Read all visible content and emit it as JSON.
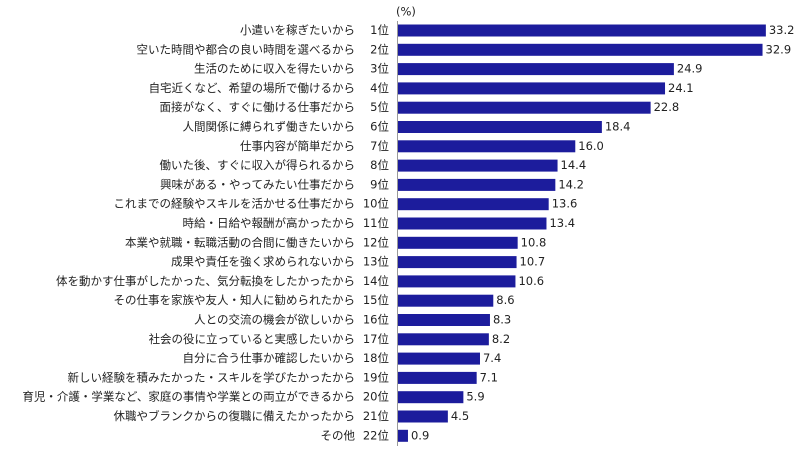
{
  "chart_data": {
    "type": "bar",
    "orientation": "horizontal",
    "unit_label": "(%)",
    "color": "#1c1c9c",
    "categories": [
      "小遣いを稼ぎたいから",
      "空いた時間や都合の良い時間を選べるから",
      "生活のために収入を得たいから",
      "自宅近くなど、希望の場所で働けるから",
      "面接がなく、すぐに働ける仕事だから",
      "人間関係に縛られず働きたいから",
      "仕事内容が簡単だから",
      "働いた後、すぐに収入が得られるから",
      "興味がある・やってみたい仕事だから",
      "これまでの経験やスキルを活かせる仕事だから",
      "時給・日給や報酬が高かったから",
      "本業や就職・転職活動の合間に働きたいから",
      "成果や責任を強く求められないから",
      "体を動かす仕事がしたかった、気分転換をしたかったから",
      "その仕事を家族や友人・知人に勧められたから",
      "人との交流の機会が欲しいから",
      "社会の役に立っていると実感したいから",
      "自分に合う仕事か確認したいから",
      "新しい経験を積みたかった・スキルを学びたかったから",
      "育児・介護・学業など、家庭の事情や学業との両立ができるから",
      "休職やブランクからの復職に備えたかったから",
      "その他"
    ],
    "ranks": [
      "1位",
      "2位",
      "3位",
      "4位",
      "5位",
      "6位",
      "7位",
      "8位",
      "9位",
      "10位",
      "11位",
      "12位",
      "13位",
      "14位",
      "15位",
      "16位",
      "17位",
      "18位",
      "19位",
      "20位",
      "21位",
      "22位"
    ],
    "values": [
      33.2,
      32.9,
      24.9,
      24.1,
      22.8,
      18.4,
      16.0,
      14.4,
      14.2,
      13.6,
      13.4,
      10.8,
      10.7,
      10.6,
      8.6,
      8.3,
      8.2,
      7.4,
      7.1,
      5.9,
      4.5,
      0.9
    ],
    "value_labels": [
      "33.2",
      "32.9",
      "24.9",
      "24.1",
      "22.8",
      "18.4",
      "16.0",
      "14.4",
      "14.2",
      "13.6",
      "13.4",
      "10.8",
      "10.7",
      "10.6",
      "8.6",
      "8.3",
      "8.2",
      "7.4",
      "7.1",
      "5.9",
      "4.5",
      "0.9"
    ]
  }
}
